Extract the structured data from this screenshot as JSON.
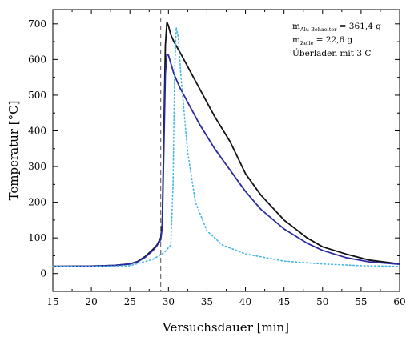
{
  "chart_data": {
    "type": "line",
    "xlabel": "Versuchsdauer [min]",
    "ylabel": "Temperatur [°C]",
    "xlim": [
      15,
      60
    ],
    "ylim": [
      -50,
      740
    ],
    "xticks": [
      15,
      20,
      25,
      30,
      35,
      40,
      45,
      50,
      55,
      60
    ],
    "yticks": [
      0,
      100,
      200,
      300,
      400,
      500,
      600,
      700
    ],
    "grid": false,
    "annotations": {
      "line1_main": "m",
      "line1_sub": "Alu-Behaelter",
      "line1_rest": " = 361,4 g",
      "line2_main": "m",
      "line2_sub": "Zelle",
      "line2_rest": " = 22,6 g",
      "line3": "Überladen mit 3 C"
    },
    "vline_x": 29,
    "series": [
      {
        "color": "#111111",
        "style": "solid",
        "x": [
          15,
          20,
          23,
          25,
          26,
          27,
          28,
          28.5,
          29.0,
          29.2,
          29.4,
          29.6,
          29.8,
          30.0,
          30.3,
          30.7,
          31.5,
          32.5,
          34,
          36,
          38,
          40,
          42,
          45,
          48,
          50,
          53,
          56,
          60
        ],
        "y": [
          20,
          21,
          23,
          27,
          34,
          48,
          68,
          80,
          100,
          140,
          400,
          640,
          705,
          695,
          670,
          650,
          620,
          580,
          520,
          440,
          370,
          280,
          220,
          150,
          100,
          75,
          55,
          38,
          27
        ]
      },
      {
        "color": "#2a2aa0",
        "style": "solid",
        "x": [
          15,
          20,
          23,
          25,
          26,
          27,
          28,
          28.5,
          29.0,
          29.2,
          29.4,
          29.6,
          29.8,
          30.0,
          30.3,
          30.7,
          31.5,
          32.5,
          34,
          36,
          38,
          40,
          42,
          45,
          48,
          50,
          53,
          56,
          60
        ],
        "y": [
          20,
          21,
          23,
          27,
          33,
          46,
          65,
          78,
          95,
          130,
          350,
          560,
          615,
          612,
          590,
          560,
          520,
          480,
          420,
          350,
          290,
          230,
          180,
          125,
          85,
          65,
          45,
          33,
          26
        ]
      },
      {
        "color": "#3fb7e6",
        "style": "dotted",
        "x": [
          15,
          20,
          25,
          28,
          29.5,
          30.3,
          30.6,
          30.8,
          31.0,
          31.3,
          31.6,
          32.0,
          32.5,
          33.5,
          35,
          37,
          40,
          45,
          50,
          55,
          60
        ],
        "y": [
          20,
          20,
          22,
          40,
          60,
          80,
          250,
          560,
          690,
          660,
          560,
          460,
          340,
          200,
          120,
          80,
          55,
          35,
          27,
          22,
          20
        ]
      }
    ]
  }
}
